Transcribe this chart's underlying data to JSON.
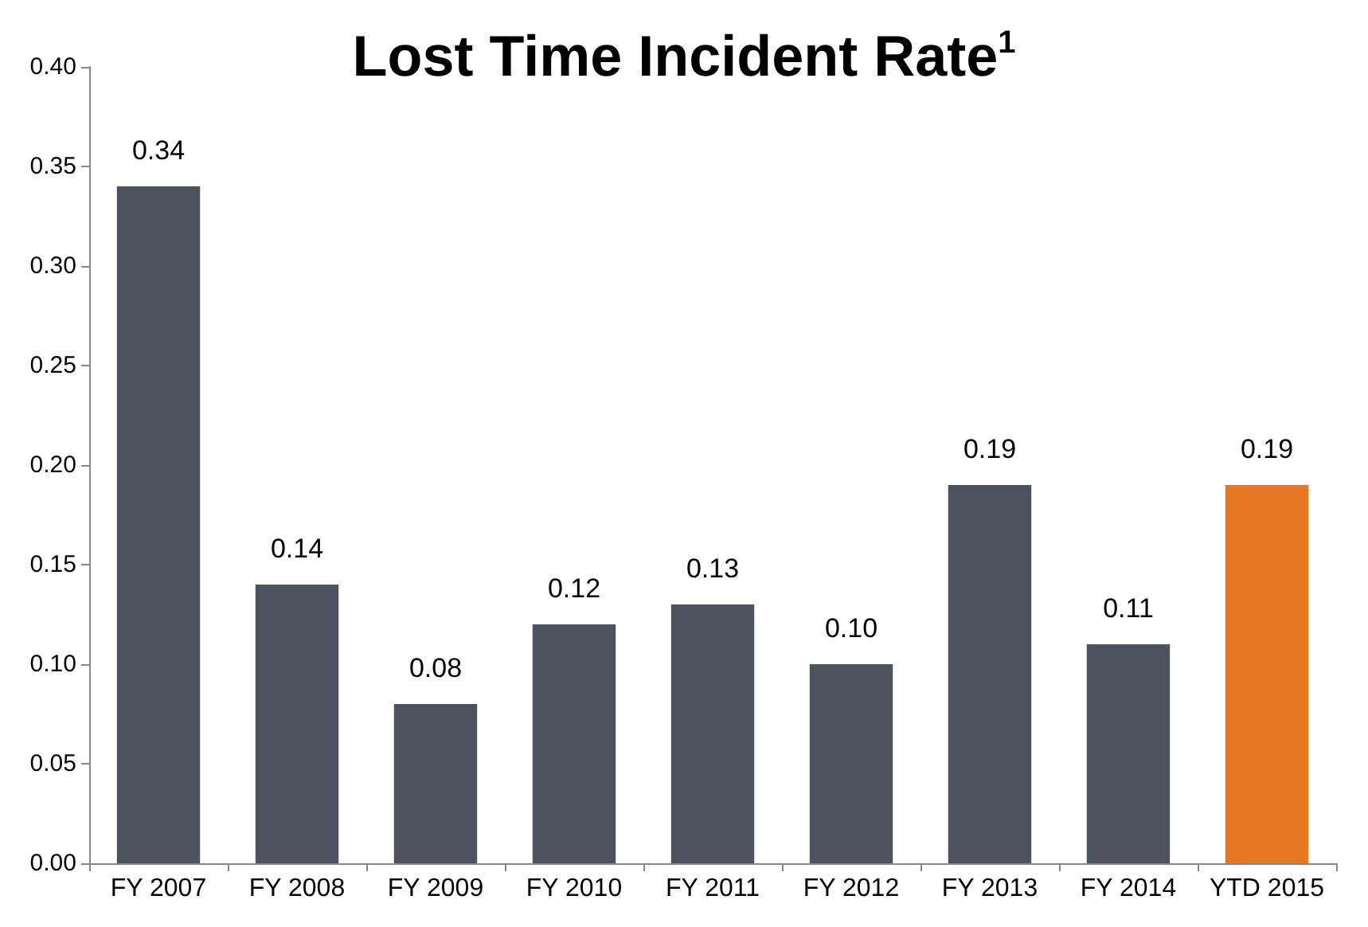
{
  "chart_data": {
    "type": "bar",
    "title": "Lost Time Incident Rate$^{1}$",
    "categories": [
      "FY 2007",
      "FY 2008",
      "FY 2009",
      "FY 2010",
      "FY 2011",
      "FY 2012",
      "FY 2013",
      "FY 2014",
      "YTD 2015"
    ],
    "values": [
      0.34,
      0.14,
      0.08,
      0.12,
      0.13,
      0.1,
      0.19,
      0.11,
      0.19
    ],
    "colors": [
      "#4d535e",
      "#4d535e",
      "#4d535e",
      "#4d535e",
      "#4d535e",
      "#4d535e",
      "#4d535e",
      "#4d535e",
      "#e87722"
    ],
    "value_labels": [
      "0.34",
      "0.14",
      "0.08",
      "0.12",
      "0.13",
      "0.10",
      "0.19",
      "0.11",
      "0.19"
    ],
    "ylim": [
      0,
      0.4
    ],
    "yticks": [
      {
        "value": 0,
        "label": "0.00"
      },
      {
        "value": 0.05,
        "label": "0.05"
      },
      {
        "value": 0.1,
        "label": "0.10"
      },
      {
        "value": 0.15,
        "label": "0.15"
      },
      {
        "value": 0.2,
        "label": "0.20"
      },
      {
        "value": 0.25,
        "label": "0.25"
      },
      {
        "value": 0.3,
        "label": "0.30"
      },
      {
        "value": 0.35,
        "label": "0.35"
      },
      {
        "value": 0.4,
        "label": "0.40"
      }
    ],
    "grid": false
  }
}
